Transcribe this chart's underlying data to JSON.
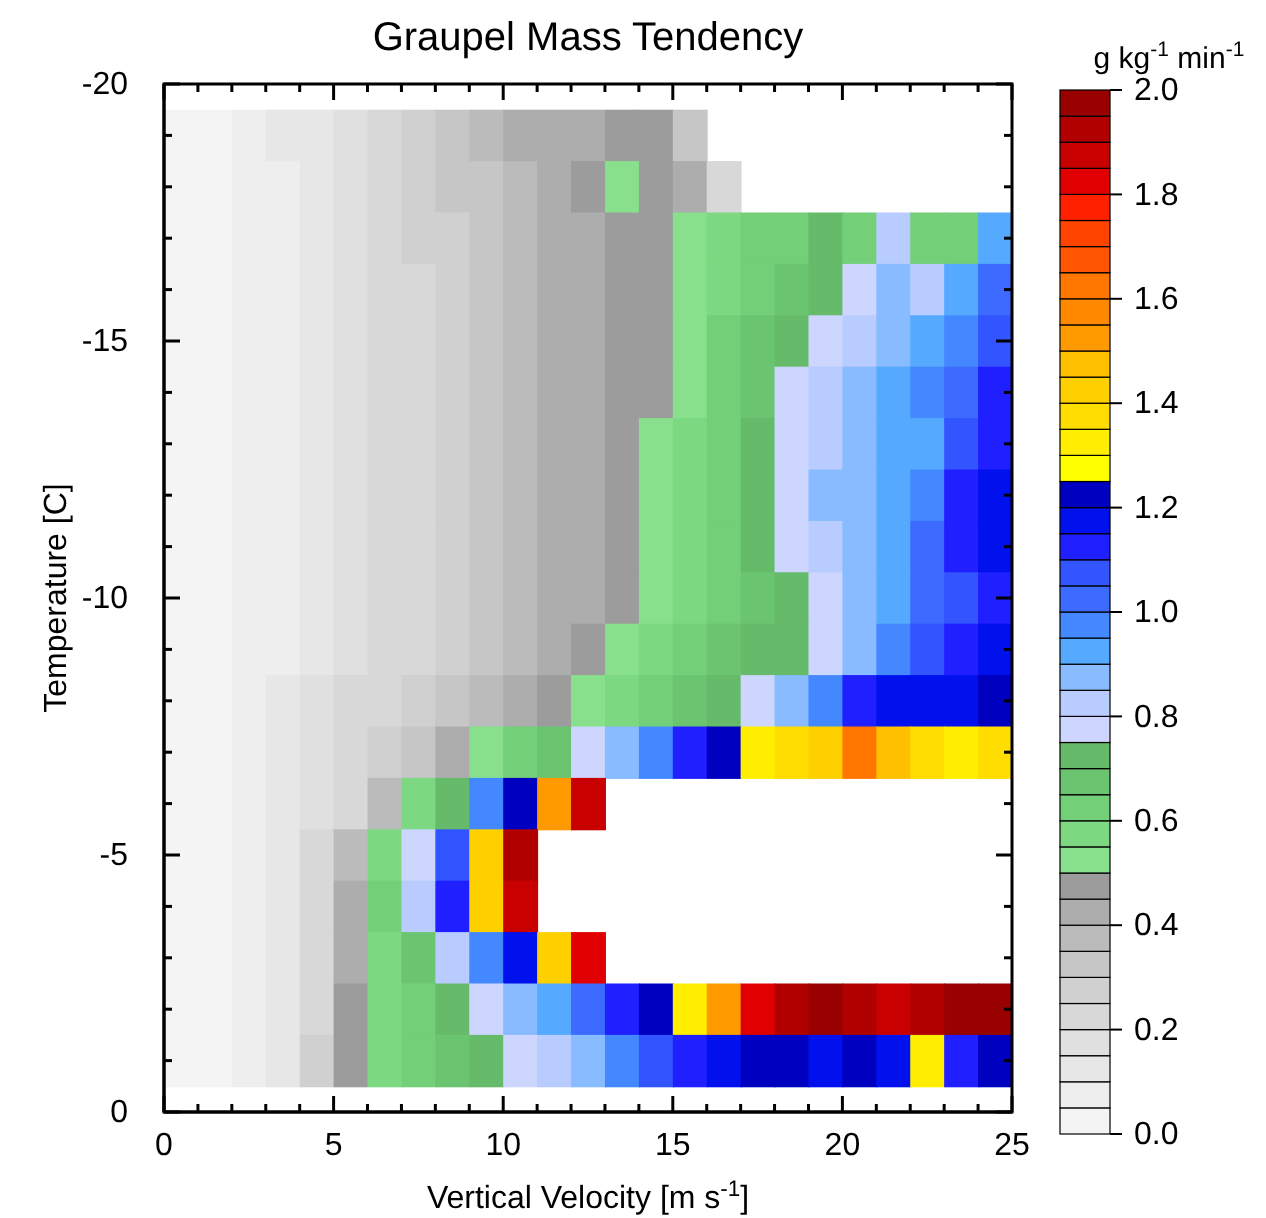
{
  "chart_data": {
    "type": "heatmap",
    "title": "Graupel Mass Tendency",
    "xlabel": "Vertical Velocity [m s$^{-1}$]",
    "ylabel": "Temperature [C]",
    "clabel": "g kg$^{-1}$ min$^{-1}$",
    "x": [
      0.5,
      1.5,
      2.5,
      3.5,
      4.5,
      5.5,
      6.5,
      7.5,
      8.5,
      9.5,
      10.5,
      11.5,
      12.5,
      13.5,
      14.5,
      15.5,
      16.5,
      17.5,
      18.5,
      19.5,
      20.5,
      21.5,
      22.5,
      23.5,
      24.5
    ],
    "y": [
      -19,
      -18,
      -17,
      -16,
      -15,
      -14,
      -13,
      -12,
      -11,
      -10,
      -9,
      -8,
      -7,
      -6,
      -5,
      -4,
      -3,
      -2,
      -1
    ],
    "xlim": [
      0,
      25
    ],
    "ylim": [
      0,
      -20
    ],
    "xticks": [
      0,
      {
        "value": 1,
        "label": null
      },
      {
        "value": 2,
        "label": null
      },
      {
        "value": 3,
        "label": null
      },
      {
        "value": 4,
        "label": null
      },
      5,
      {
        "value": 6,
        "label": null
      },
      {
        "value": 7,
        "label": null
      },
      {
        "value": 8,
        "label": null
      },
      {
        "value": 9,
        "label": null
      },
      10,
      {
        "value": 11,
        "label": null
      },
      {
        "value": 12,
        "label": null
      },
      {
        "value": 13,
        "label": null
      },
      {
        "value": 14,
        "label": null
      },
      15,
      {
        "value": 16,
        "label": null
      },
      {
        "value": 17,
        "label": null
      },
      {
        "value": 18,
        "label": null
      },
      {
        "value": 19,
        "label": null
      },
      20,
      {
        "value": 21,
        "label": null
      },
      {
        "value": 22,
        "label": null
      },
      {
        "value": 23,
        "label": null
      },
      {
        "value": 24,
        "label": null
      },
      25
    ],
    "yticks": [
      0,
      {
        "value": -1,
        "label": null
      },
      {
        "value": -2,
        "label": null
      },
      {
        "value": -3,
        "label": null
      },
      {
        "value": -4,
        "label": null
      },
      -5,
      {
        "value": -6,
        "label": null
      },
      {
        "value": -7,
        "label": null
      },
      {
        "value": -8,
        "label": null
      },
      {
        "value": -9,
        "label": null
      },
      -10,
      {
        "value": -11,
        "label": null
      },
      {
        "value": -12,
        "label": null
      },
      {
        "value": -13,
        "label": null
      },
      {
        "value": -14,
        "label": null
      },
      -15,
      {
        "value": -16,
        "label": null
      },
      {
        "value": -17,
        "label": null
      },
      {
        "value": -18,
        "label": null
      },
      {
        "value": -19,
        "label": null
      },
      -20
    ],
    "clim": [
      0,
      2
    ],
    "cticks": [
      {
        "value": 0,
        "label": "0.0"
      },
      {
        "value": 0.2,
        "label": "0.2"
      },
      {
        "value": 0.4,
        "label": "0.4"
      },
      {
        "value": 0.6,
        "label": "0.6"
      },
      {
        "value": 0.8,
        "label": "0.8"
      },
      {
        "value": 1,
        "label": "1.0"
      },
      {
        "value": 1.2,
        "label": "1.2"
      },
      {
        "value": 1.4,
        "label": "1.4"
      },
      {
        "value": 1.6,
        "label": "1.6"
      },
      {
        "value": 1.8,
        "label": "1.8"
      },
      {
        "value": 2,
        "label": "2.0"
      }
    ],
    "colors": [
      "#f4f4f4",
      "#eeeeee",
      "#e7e7e7",
      "#e0e0e0",
      "#d8d8d8",
      "#d0d0d0",
      "#c6c6c6",
      "#bbbbbb",
      "#adadad",
      "#9c9c9c",
      "#88e08c",
      "#7dd882",
      "#74cf79",
      "#6bc470",
      "#66bb6a",
      "#ccd6ff",
      "#b8ccff",
      "#88bbff",
      "#55aaff",
      "#4488ff",
      "#3d6bff",
      "#3355ff",
      "#1f1fff",
      "#0011ee",
      "#0000c0",
      "#ffff00",
      "#ffee00",
      "#ffdd00",
      "#ffd000",
      "#ffc000",
      "#ff9900",
      "#ff8800",
      "#ff7700",
      "#ff5500",
      "#ff4400",
      "#ff2000",
      "#e00000",
      "#c80000",
      "#b00000",
      "#990000"
    ],
    "cells": [
      [
        0.02,
        0.03,
        0.06,
        0.1,
        0.14,
        0.18,
        0.22,
        0.27,
        0.32,
        0.36,
        0.4,
        0.42,
        0.44,
        0.46,
        0.45,
        0.3,
        null,
        null,
        null,
        null,
        null,
        null,
        null,
        null,
        null
      ],
      [
        0.02,
        0.03,
        0.05,
        0.09,
        0.13,
        0.17,
        0.21,
        0.26,
        0.3,
        0.34,
        0.38,
        0.42,
        0.46,
        0.52,
        0.48,
        0.4,
        0.2,
        null,
        null,
        null,
        null,
        null,
        null,
        null,
        null
      ],
      [
        0.02,
        0.03,
        0.05,
        0.09,
        0.13,
        0.17,
        0.21,
        0.25,
        0.29,
        0.33,
        0.37,
        0.41,
        0.44,
        0.47,
        0.49,
        0.5,
        0.55,
        0.6,
        0.62,
        0.7,
        0.62,
        0.8,
        0.6,
        0.62,
        0.9
      ],
      [
        0.02,
        0.03,
        0.05,
        0.08,
        0.12,
        0.16,
        0.2,
        0.24,
        0.28,
        0.32,
        0.36,
        0.4,
        0.44,
        0.47,
        0.49,
        0.53,
        0.58,
        0.63,
        0.68,
        0.72,
        0.78,
        0.85,
        0.82,
        0.9,
        1.0
      ],
      [
        0.02,
        0.03,
        0.05,
        0.08,
        0.12,
        0.16,
        0.2,
        0.24,
        0.28,
        0.32,
        0.36,
        0.4,
        0.44,
        0.47,
        0.49,
        0.52,
        0.6,
        0.66,
        0.73,
        0.78,
        0.82,
        0.88,
        0.92,
        0.95,
        1.05
      ],
      [
        0.02,
        0.03,
        0.05,
        0.08,
        0.12,
        0.16,
        0.2,
        0.24,
        0.28,
        0.32,
        0.36,
        0.4,
        0.44,
        0.47,
        0.49,
        0.53,
        0.6,
        0.68,
        0.76,
        0.82,
        0.88,
        0.9,
        0.95,
        1.0,
        1.1
      ],
      [
        0.02,
        0.03,
        0.05,
        0.08,
        0.12,
        0.16,
        0.2,
        0.24,
        0.28,
        0.32,
        0.36,
        0.4,
        0.44,
        0.47,
        0.5,
        0.55,
        0.62,
        0.7,
        0.77,
        0.83,
        0.88,
        0.9,
        0.93,
        1.05,
        1.12
      ],
      [
        0.02,
        0.03,
        0.05,
        0.08,
        0.12,
        0.16,
        0.2,
        0.24,
        0.28,
        0.32,
        0.36,
        0.4,
        0.44,
        0.47,
        0.5,
        0.55,
        0.63,
        0.7,
        0.78,
        0.85,
        0.88,
        0.9,
        0.95,
        1.1,
        1.15
      ],
      [
        0.02,
        0.03,
        0.05,
        0.08,
        0.12,
        0.16,
        0.2,
        0.24,
        0.28,
        0.32,
        0.36,
        0.4,
        0.44,
        0.47,
        0.51,
        0.56,
        0.64,
        0.7,
        0.77,
        0.84,
        0.88,
        0.9,
        1.0,
        1.1,
        1.15
      ],
      [
        0.02,
        0.03,
        0.05,
        0.08,
        0.12,
        0.16,
        0.2,
        0.24,
        0.28,
        0.32,
        0.36,
        0.4,
        0.44,
        0.47,
        0.5,
        0.56,
        0.62,
        0.68,
        0.72,
        0.76,
        0.85,
        0.9,
        1.0,
        1.05,
        1.1
      ],
      [
        0.01,
        0.03,
        0.05,
        0.08,
        0.12,
        0.16,
        0.2,
        0.24,
        0.28,
        0.32,
        0.36,
        0.41,
        0.45,
        0.5,
        0.55,
        0.6,
        0.65,
        0.7,
        0.73,
        0.76,
        0.88,
        0.95,
        1.05,
        1.1,
        1.15
      ],
      [
        0.01,
        0.04,
        0.08,
        0.12,
        0.16,
        0.2,
        0.24,
        0.28,
        0.32,
        0.36,
        0.4,
        0.45,
        0.52,
        0.57,
        0.62,
        0.67,
        0.72,
        0.78,
        0.85,
        0.95,
        1.1,
        1.15,
        1.15,
        1.18,
        1.2
      ],
      [
        0.01,
        0.03,
        0.07,
        0.11,
        0.15,
        0.2,
        0.25,
        0.32,
        0.42,
        0.52,
        0.6,
        0.68,
        0.78,
        0.88,
        0.98,
        1.1,
        1.2,
        1.3,
        1.35,
        1.4,
        1.6,
        1.45,
        1.35,
        1.3,
        1.35
      ],
      [
        0.01,
        0.03,
        0.06,
        0.1,
        0.15,
        0.22,
        0.35,
        0.55,
        0.72,
        0.95,
        1.2,
        1.5,
        1.85,
        null,
        null,
        null,
        null,
        null,
        null,
        null,
        null,
        null,
        null,
        null,
        null
      ],
      [
        0.01,
        0.03,
        0.06,
        0.12,
        0.2,
        0.35,
        0.55,
        0.78,
        1.05,
        1.4,
        1.9,
        null,
        null,
        null,
        null,
        null,
        null,
        null,
        null,
        null,
        null,
        null,
        null,
        null,
        null
      ],
      [
        0.01,
        0.03,
        0.06,
        0.12,
        0.22,
        0.4,
        0.6,
        0.82,
        1.1,
        1.4,
        1.85,
        null,
        null,
        null,
        null,
        null,
        null,
        null,
        null,
        null,
        null,
        null,
        null,
        null,
        null
      ],
      [
        0.01,
        0.03,
        0.06,
        0.12,
        0.22,
        0.4,
        0.56,
        0.68,
        0.8,
        0.95,
        1.15,
        1.4,
        1.8,
        null,
        null,
        null,
        null,
        null,
        null,
        null,
        null,
        null,
        null,
        null,
        null
      ],
      [
        0.01,
        0.03,
        0.06,
        0.12,
        0.24,
        0.45,
        0.56,
        0.62,
        0.72,
        0.78,
        0.85,
        0.9,
        1.0,
        1.1,
        1.2,
        1.3,
        1.5,
        1.8,
        1.9,
        1.95,
        1.9,
        1.85,
        1.9,
        1.95,
        1.98
      ],
      [
        0.01,
        0.03,
        0.06,
        0.12,
        0.25,
        0.48,
        0.55,
        0.6,
        0.65,
        0.7,
        0.76,
        0.8,
        0.86,
        0.95,
        1.05,
        1.12,
        1.15,
        1.2,
        1.2,
        1.15,
        1.2,
        1.15,
        1.3,
        1.1,
        1.2
      ]
    ]
  }
}
